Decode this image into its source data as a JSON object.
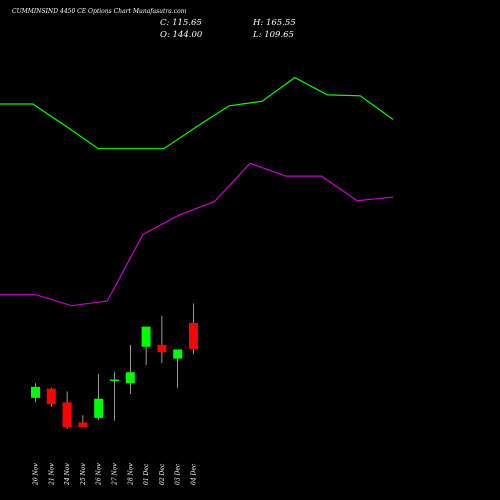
{
  "header": {
    "title": "CUMMINSIND 4450  CE Options  Chart Munafasutra.com",
    "close": "C: 115.65",
    "high": "H: 165.55",
    "open": "O: 144.00",
    "low": "L: 109.65"
  },
  "colors": {
    "background": "#000000",
    "up_candle": "#00ff00",
    "down_candle": "#ff0000",
    "upper_band": "#00ff00",
    "lower_band": "#cc00cc",
    "text": "#ffffff"
  },
  "chart_data": {
    "type": "candlestick",
    "categories": [
      "20 Nov",
      "21 Nov",
      "24 Nov",
      "25 Nov",
      "26 Nov",
      "27 Nov",
      "28 Nov",
      "01 Dec",
      "02 Dec",
      "03 Dec",
      "04 Dec"
    ],
    "candles": [
      {
        "date": "20 Nov",
        "open": 62,
        "high": 78,
        "low": 57,
        "close": 74
      },
      {
        "date": "21 Nov",
        "open": 72,
        "high": 73,
        "low": 52,
        "close": 55
      },
      {
        "date": "24 Nov",
        "open": 57,
        "high": 69,
        "low": 28,
        "close": 30
      },
      {
        "date": "25 Nov",
        "open": 35,
        "high": 43,
        "low": 30,
        "close": 30
      },
      {
        "date": "26 Nov",
        "open": 40,
        "high": 88,
        "low": 38,
        "close": 61
      },
      {
        "date": "27 Nov",
        "open": 82,
        "high": 90,
        "low": 37,
        "close": 82
      },
      {
        "date": "28 Nov",
        "open": 78,
        "high": 120,
        "low": 66,
        "close": 90
      },
      {
        "date": "01 Dec",
        "open": 118,
        "high": 139,
        "low": 98,
        "close": 140
      },
      {
        "date": "02 Dec",
        "open": 120,
        "high": 152,
        "low": 100,
        "close": 112
      },
      {
        "date": "03 Dec",
        "open": 105,
        "high": 115,
        "low": 73,
        "close": 115
      },
      {
        "date": "04 Dec",
        "open": 144,
        "high": 165.55,
        "low": 109.65,
        "close": 115.65
      }
    ],
    "upper_band": [
      384,
      384,
      360,
      335,
      335,
      335,
      359,
      382,
      387,
      413,
      394,
      393,
      367
    ],
    "lower_band": [
      175,
      175,
      163,
      168,
      241,
      262,
      277,
      319,
      305,
      305,
      278,
      282
    ],
    "ylim": [
      -50,
      498
    ]
  }
}
